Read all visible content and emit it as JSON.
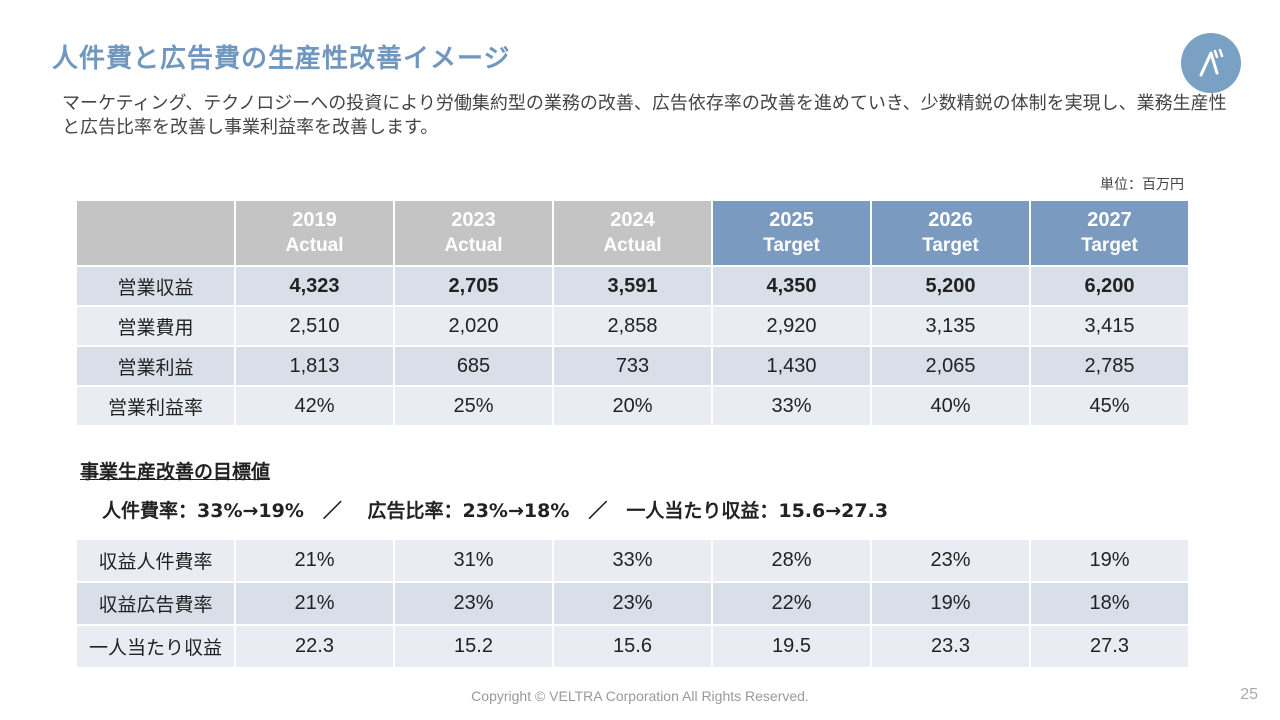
{
  "title": "人件費と広告費の生産性改善イメージ",
  "description": "マーケティング、テクノロジーへの投資により労働集約型の業務の改善、広告依存率の改善を進めていき、少数精鋭の体制を実現し、業務生産性と広告比率を改善し事業利益率を改善します。",
  "unit": "単位：百万円",
  "table1": {
    "headers": [
      {
        "year": "2019",
        "type": "Actual"
      },
      {
        "year": "2023",
        "type": "Actual"
      },
      {
        "year": "2024",
        "type": "Actual"
      },
      {
        "year": "2025",
        "type": "Target"
      },
      {
        "year": "2026",
        "type": "Target"
      },
      {
        "year": "2027",
        "type": "Target"
      }
    ],
    "rows": [
      {
        "label": "営業収益",
        "values": [
          "4,323",
          "2,705",
          "3,591",
          "4,350",
          "5,200",
          "6,200"
        ]
      },
      {
        "label": "営業費用",
        "values": [
          "2,510",
          "2,020",
          "2,858",
          "2,920",
          "3,135",
          "3,415"
        ]
      },
      {
        "label": "営業利益",
        "values": [
          "1,813",
          "685",
          "733",
          "1,430",
          "2,065",
          "2,785"
        ]
      },
      {
        "label": "営業利益率",
        "values": [
          "42%",
          "25%",
          "20%",
          "33%",
          "40%",
          "45%"
        ]
      }
    ]
  },
  "subheading": "事業生産改善の目標値",
  "goals": "人件費率：33%→19%　／　 広告比率：23%→18%　／　一人当たり収益：15.6→27.3",
  "table2": {
    "rows": [
      {
        "label": "収益人件費率",
        "values": [
          "21%",
          "31%",
          "33%",
          "28%",
          "23%",
          "19%"
        ]
      },
      {
        "label": "収益広告費率",
        "values": [
          "21%",
          "23%",
          "23%",
          "22%",
          "19%",
          "18%"
        ]
      },
      {
        "label": "一人当たり収益",
        "values": [
          "22.3",
          "15.2",
          "15.6",
          "19.5",
          "23.3",
          "27.3"
        ]
      }
    ]
  },
  "footer": "Copyright © VELTRA Corporation All Rights Reserved.",
  "page_number": "25",
  "colors": {
    "title": "#6f97bf",
    "actual_header": "#c4c4c4",
    "target_header": "#7a9bbf",
    "row_dark": "#d8dfe9",
    "row_light": "#e9edf3"
  }
}
